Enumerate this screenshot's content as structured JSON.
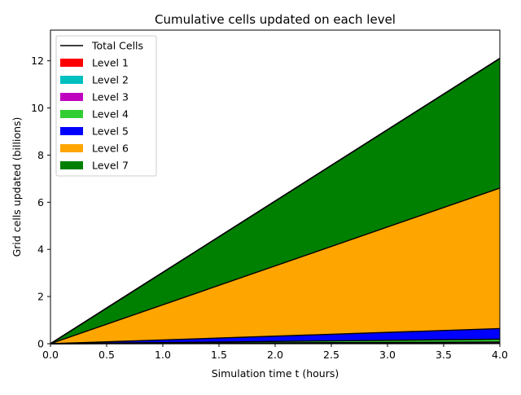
{
  "chart_data": {
    "type": "area",
    "stacked": true,
    "title": "Cumulative cells updated on each level",
    "xlabel": "Simulation time t (hours)",
    "ylabel": "Grid cells updated (billions)",
    "xlim": [
      0,
      4
    ],
    "ylim": [
      0,
      13.3
    ],
    "xticks": [
      0.0,
      0.5,
      1.0,
      1.5,
      2.0,
      2.5,
      3.0,
      3.5,
      4.0
    ],
    "xtick_labels": [
      "0.0",
      "0.5",
      "1.0",
      "1.5",
      "2.0",
      "2.5",
      "3.0",
      "3.5",
      "4.0"
    ],
    "yticks": [
      0,
      2,
      4,
      6,
      8,
      10,
      12
    ],
    "ytick_labels": [
      "0",
      "2",
      "4",
      "6",
      "8",
      "10",
      "12"
    ],
    "grid": false,
    "legend_position": "top-left",
    "x": [
      0,
      4
    ],
    "series": [
      {
        "name": "Level 1",
        "color": "#ff0000",
        "values": [
          0,
          0.005
        ]
      },
      {
        "name": "Level 2",
        "color": "#00bfbf",
        "values": [
          0,
          0.015
        ]
      },
      {
        "name": "Level 3",
        "color": "#bf00bf",
        "values": [
          0,
          0.05
        ]
      },
      {
        "name": "Level 4",
        "color": "#32cd32",
        "values": [
          0,
          0.12
        ]
      },
      {
        "name": "Level 5",
        "color": "#0000ff",
        "values": [
          0,
          0.45
        ]
      },
      {
        "name": "Level 6",
        "color": "#ffa500",
        "values": [
          0,
          5.96
        ]
      },
      {
        "name": "Level 7",
        "color": "#008000",
        "values": [
          0,
          5.5
        ]
      }
    ],
    "total": {
      "name": "Total Cells",
      "color": "#000000",
      "values": [
        0,
        12.1
      ]
    }
  }
}
